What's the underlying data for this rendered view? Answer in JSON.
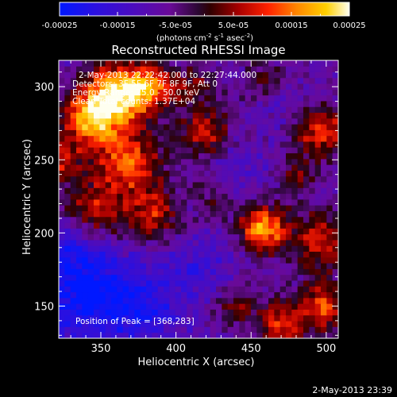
{
  "chart_data": {
    "type": "heatmap",
    "title": "Reconstructed RHESSI Image",
    "xlabel": "Heliocentric X (arcsec)",
    "ylabel": "Heliocentric Y (arcsec)",
    "xlim": [
      322,
      508
    ],
    "ylim": [
      128,
      318
    ],
    "x_ticks": [
      350,
      400,
      450,
      500
    ],
    "y_ticks": [
      150,
      200,
      250,
      300
    ],
    "colorbar": {
      "range": [
        -0.00025,
        0.00025
      ],
      "tick_labels": [
        "-0.00025",
        "-0.00015",
        "-5.0e-05",
        "5.0e-05",
        "0.00015",
        "0.00025"
      ],
      "unit_label": "(photons cm",
      "unit_exp1": "-2",
      "unit_mid": " s",
      "unit_exp2": "-1",
      "unit_mid2": " asec",
      "unit_exp3": "-2",
      "unit_end": ")"
    },
    "info_lines": [
      "2-May-2013 22:22:42.000 to 22:27:44.000",
      "Detectors: 3F 5F 6F 7F 8F 9F, Att 0",
      "Energy Range: 25.0 - 50.0 keV",
      "Clean    Total counts: 1.37E+04"
    ],
    "peak_label": "Position of Peak = [368,283]",
    "blobs": [
      {
        "x": 362,
        "y": 295,
        "sigma": 15,
        "amp": 1.0
      },
      {
        "x": 342,
        "y": 278,
        "sigma": 13,
        "amp": 0.75
      },
      {
        "x": 385,
        "y": 300,
        "sigma": 10,
        "amp": 0.55
      },
      {
        "x": 368,
        "y": 248,
        "sigma": 16,
        "amp": 0.65
      },
      {
        "x": 345,
        "y": 215,
        "sigma": 14,
        "amp": 0.55
      },
      {
        "x": 385,
        "y": 212,
        "sigma": 12,
        "amp": 0.5
      },
      {
        "x": 420,
        "y": 268,
        "sigma": 12,
        "amp": 0.5
      },
      {
        "x": 412,
        "y": 300,
        "sigma": 10,
        "amp": 0.35
      },
      {
        "x": 458,
        "y": 203,
        "sigma": 11,
        "amp": 0.85
      },
      {
        "x": 497,
        "y": 270,
        "sigma": 12,
        "amp": 0.6
      },
      {
        "x": 480,
        "y": 240,
        "sigma": 9,
        "amp": 0.35
      },
      {
        "x": 495,
        "y": 195,
        "sigma": 13,
        "amp": 0.55
      },
      {
        "x": 498,
        "y": 150,
        "sigma": 12,
        "amp": 0.6
      },
      {
        "x": 470,
        "y": 138,
        "sigma": 11,
        "amp": 0.55
      },
      {
        "x": 440,
        "y": 150,
        "sigma": 10,
        "amp": 0.35
      },
      {
        "x": 425,
        "y": 225,
        "sigma": 10,
        "amp": 0.25
      },
      {
        "x": 322,
        "y": 250,
        "sigma": 10,
        "amp": 0.45
      },
      {
        "x": 460,
        "y": 305,
        "sigma": 10,
        "amp": 0.3
      }
    ],
    "sinks": [
      {
        "x": 340,
        "y": 160,
        "sigma": 22,
        "amp": 0.75
      },
      {
        "x": 378,
        "y": 148,
        "sigma": 18,
        "amp": 0.5
      },
      {
        "x": 330,
        "y": 195,
        "sigma": 14,
        "amp": 0.4
      },
      {
        "x": 415,
        "y": 175,
        "sigma": 18,
        "amp": 0.3
      },
      {
        "x": 440,
        "y": 245,
        "sigma": 14,
        "amp": 0.25
      },
      {
        "x": 470,
        "y": 290,
        "sigma": 10,
        "amp": 0.2
      }
    ]
  },
  "timestamp": "2-May-2013 23:39"
}
